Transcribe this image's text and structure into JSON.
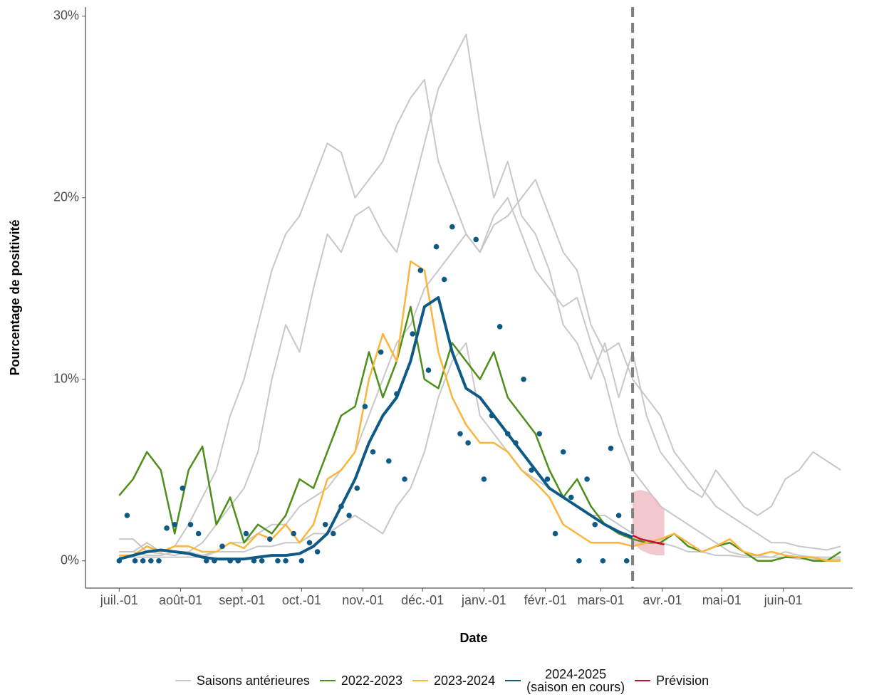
{
  "chart_data": {
    "type": "line",
    "xlabel": "Date",
    "ylabel": "Pourcentage de positivité",
    "xlim": [
      -17,
      370
    ],
    "ylim": [
      -1.5,
      30.5
    ],
    "xticks": [
      {
        "value": 0,
        "label": "juil.-01"
      },
      {
        "value": 31,
        "label": "août-01"
      },
      {
        "value": 62,
        "label": "sept.-01"
      },
      {
        "value": 92,
        "label": "oct.-01"
      },
      {
        "value": 123,
        "label": "nov.-01"
      },
      {
        "value": 153,
        "label": "déc.-01"
      },
      {
        "value": 184,
        "label": "janv.-01"
      },
      {
        "value": 215,
        "label": "févr.-01"
      },
      {
        "value": 243,
        "label": "mars-01"
      },
      {
        "value": 274,
        "label": "avr.-01"
      },
      {
        "value": 304,
        "label": "mai-01"
      },
      {
        "value": 335,
        "label": "juin-01"
      }
    ],
    "yticks": [
      {
        "value": 0,
        "label": "0%"
      },
      {
        "value": 10,
        "label": "10%"
      },
      {
        "value": 20,
        "label": "20%"
      },
      {
        "value": 30,
        "label": "30%"
      }
    ],
    "vline_x": 259,
    "x": [
      0,
      7,
      14,
      21,
      28,
      35,
      42,
      49,
      56,
      63,
      70,
      77,
      84,
      91,
      98,
      105,
      112,
      119,
      126,
      133,
      140,
      147,
      154,
      161,
      168,
      175,
      182,
      189,
      196,
      203,
      210,
      217,
      224,
      231,
      238,
      245,
      252,
      259,
      266,
      273,
      280,
      287,
      294,
      301,
      308,
      315,
      322,
      329,
      336,
      343,
      350,
      357,
      364
    ],
    "series": [
      {
        "name": "Saisons antérieures",
        "color": "#c8c8c8",
        "lines": [
          [
            1.2,
            1.2,
            0.5,
            0.4,
            0.3,
            0.5,
            1.0,
            2.0,
            3.0,
            4.0,
            6.0,
            10.0,
            13.0,
            11.5,
            15.0,
            18.0,
            17.0,
            19.0,
            19.5,
            18.0,
            17.0,
            20.0,
            23.0,
            26.0,
            27.5,
            29.0,
            24.0,
            20.0,
            22.0,
            19.0,
            18.0,
            16.0,
            13.0,
            12.0,
            10.0,
            12.0,
            9.0,
            11.5,
            8.0,
            6.0,
            5.0,
            4.0,
            3.5,
            5.0,
            4.0,
            3.0,
            2.5,
            3.0,
            4.5,
            5.0,
            6.0,
            5.5,
            5.0
          ],
          [
            0.5,
            0.5,
            1.0,
            0.5,
            0.8,
            2.0,
            3.5,
            5.0,
            8.0,
            10.0,
            13,
            16,
            18,
            19,
            21,
            23,
            22.5,
            20,
            21,
            22,
            24,
            25.5,
            26.5,
            22,
            20,
            18,
            17,
            19,
            20,
            18,
            16,
            15,
            14,
            14.5,
            12,
            10,
            7,
            5,
            4,
            3,
            2.5,
            2,
            1.5,
            1,
            0.5,
            0.3,
            0.3,
            0.2,
            0.5,
            0.3,
            0.2,
            0.2,
            0.2
          ],
          [
            0.5,
            0.5,
            0.3,
            0.3,
            0.5,
            0.5,
            0.3,
            0.5,
            1,
            1,
            1.5,
            2,
            2,
            3,
            3.5,
            4,
            5,
            6,
            8,
            10,
            12,
            13,
            15,
            16,
            17,
            18,
            17,
            18.5,
            19,
            20,
            21,
            19,
            17,
            16,
            13,
            11.5,
            12,
            10,
            9,
            8,
            6,
            5,
            4,
            3,
            2.5,
            2,
            1.5,
            1,
            1,
            0.8,
            0.7,
            0.6,
            0.8
          ],
          [
            0.2,
            0.2,
            0.2,
            0.2,
            0.2,
            0.2,
            0.2,
            0.5,
            0.5,
            0.5,
            0.8,
            0.8,
            1,
            1,
            1.5,
            1.5,
            2,
            2.5,
            2,
            1.5,
            3,
            4,
            6,
            9,
            11,
            12,
            8,
            7,
            6,
            5,
            4.5,
            4,
            3.5,
            3,
            2.5,
            2.5,
            2,
            1.5,
            1,
            1,
            0.8,
            0.5,
            0.5,
            0.3,
            0.3,
            0.2,
            0.2,
            0.2,
            0.2,
            0.1,
            0.1,
            0.1,
            0.1
          ]
        ]
      },
      {
        "name": "2022-2023",
        "color": "#4d8f1a",
        "values": [
          3.6,
          4.5,
          6.0,
          5.0,
          1.5,
          5.0,
          6.3,
          2.0,
          3.5,
          1.0,
          2.0,
          1.5,
          2.5,
          4.5,
          4.0,
          6.0,
          8.0,
          8.5,
          11.5,
          9.0,
          11.0,
          14.0,
          10.0,
          9.5,
          12.0,
          11.0,
          10.0,
          11.5,
          9.0,
          8.0,
          7.0,
          5.0,
          3.5,
          4.5,
          3.0,
          2.0,
          1.5,
          1.2,
          1.0,
          1.0,
          1.5,
          0.8,
          0.5,
          0.8,
          1.0,
          0.5,
          0,
          0,
          0.2,
          0.2,
          0,
          0,
          0.5
        ]
      },
      {
        "name": "2023-2024",
        "color": "#fbb53c",
        "values": [
          0.3,
          0.3,
          0.8,
          0.5,
          0.8,
          0.8,
          0.5,
          0.5,
          1.0,
          0.7,
          1.5,
          1.2,
          2.0,
          1.0,
          2.0,
          4.5,
          5.0,
          6.0,
          10.0,
          12.5,
          11,
          16.5,
          16,
          11.5,
          9,
          7.5,
          6.5,
          6.5,
          6,
          5,
          4.3,
          3.5,
          2,
          1.5,
          1,
          1,
          1,
          0.8,
          1,
          1.2,
          1.5,
          1,
          0.5,
          0.8,
          1.2,
          0.5,
          0.3,
          0.5,
          0.3,
          0.2,
          0.2,
          0,
          0
        ]
      },
      {
        "name": "2024-2025\n(saison en cours)",
        "color": "#0e5a84",
        "values": [
          0.1,
          0.3,
          0.5,
          0.6,
          0.5,
          0.4,
          0.2,
          0.1,
          0.1,
          0.1,
          0.2,
          0.3,
          0.3,
          0.4,
          0.8,
          1.5,
          3.0,
          4.5,
          6.5,
          8.0,
          9,
          11,
          14,
          14.5,
          11.5,
          9.5,
          9,
          8,
          7,
          6,
          5,
          4,
          3.5,
          3,
          2.5,
          2,
          1.6,
          1.3,
          null,
          null,
          null,
          null,
          null,
          null,
          null,
          null,
          null,
          null,
          null,
          null,
          null,
          null,
          null
        ],
        "points": {
          "x": [
            0,
            4,
            8,
            12,
            16,
            20,
            24,
            28,
            32,
            36,
            40,
            44,
            48,
            52,
            56,
            60,
            64,
            68,
            72,
            76,
            80,
            84,
            88,
            92,
            96,
            100,
            104,
            108,
            112,
            116,
            120,
            124,
            128,
            132,
            136,
            140,
            144,
            148,
            152,
            156,
            160,
            164,
            168,
            172,
            176,
            180,
            184,
            188,
            192,
            196,
            200,
            204,
            208,
            212,
            216,
            220,
            224,
            228,
            232,
            236,
            240,
            244,
            248,
            252,
            256
          ],
          "values": [
            0,
            2.5,
            0,
            0,
            0,
            0,
            1.8,
            2.0,
            4.0,
            2.0,
            1.5,
            0,
            0,
            0.8,
            0,
            0,
            1.5,
            0,
            0,
            1.2,
            0,
            0,
            1.5,
            0,
            1.0,
            0.5,
            2.0,
            1.5,
            3.0,
            2.5,
            4.0,
            8.5,
            6.0,
            11.5,
            5.5,
            9.2,
            4.5,
            12.5,
            16.0,
            10.5,
            17.3,
            15.5,
            18.4,
            7.0,
            6.5,
            17.7,
            4.5,
            8.0,
            12.9,
            7.0,
            6.5,
            10.0,
            5.0,
            7.0,
            4.5,
            1.5,
            6.0,
            3.5,
            0,
            4.5,
            2.0,
            0,
            6.2,
            2.5,
            0
          ]
        }
      },
      {
        "name": "Prévision",
        "color": "#c8102e",
        "band_color": "#e9b0b9",
        "x": [
          259,
          263,
          267,
          271,
          275
        ],
        "values": [
          1.4,
          1.2,
          1.1,
          1.0,
          0.9
        ],
        "lower": [
          1.0,
          0.6,
          0.4,
          0.3,
          0.3
        ],
        "upper": [
          3.8,
          3.9,
          3.8,
          3.4,
          2.8
        ]
      }
    ]
  }
}
